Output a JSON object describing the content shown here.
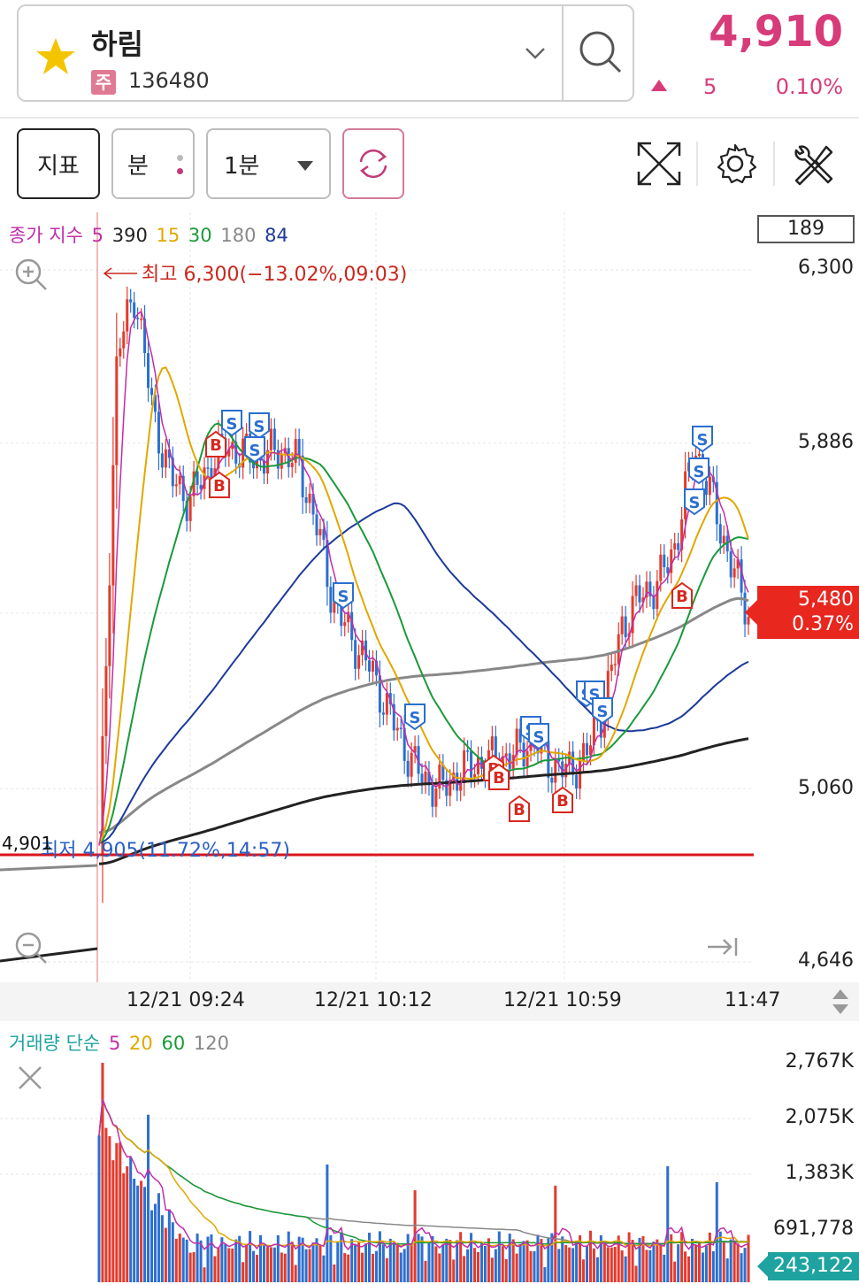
{
  "header": {
    "stock_name": "하림",
    "market_badge": "주",
    "stock_code": "136480",
    "price": "4,910",
    "change_value": "5",
    "change_percent": "0.10%",
    "up_color": "#d83b7a"
  },
  "toolbar": {
    "indicator_label": "지표",
    "unit_label": "분",
    "period_label": "1분"
  },
  "price_chart": {
    "legend": {
      "title": "종가 지수",
      "periods": [
        "5",
        "390",
        "15",
        "30",
        "180",
        "84"
      ],
      "colors": [
        "#c22ea8",
        "#222222",
        "#e0a800",
        "#1a9a3a",
        "#888888",
        "#1c3a9a"
      ]
    },
    "visible_count": "189",
    "y_axis_labels": [
      "6,300",
      "5,886",
      "5,480",
      "5,060",
      "4,646"
    ],
    "current_price_tag": "5,480",
    "current_change_tag": "0.37%",
    "high_annotation": "최고 6,300(−13.02%,09:03)",
    "low_annotation": "최저 4,905(11.72%,14:57)",
    "ref_line_label": "4,901",
    "x_axis_labels": [
      "12/21 09:24",
      "12/21 10:12",
      "12/21 10:59",
      "11:47"
    ]
  },
  "volume_chart": {
    "legend": {
      "title": "거래량 단순",
      "periods": [
        "5",
        "20",
        "60",
        "120"
      ],
      "colors": [
        "#c22ea8",
        "#e0a800",
        "#1a9a3a",
        "#888888"
      ]
    },
    "y_axis_labels": [
      "2,767K",
      "2,075K",
      "1,383K",
      "691,778"
    ],
    "current_volume_tag": "243,122"
  },
  "chart_data": {
    "type": "candlestick",
    "title": "",
    "y_range": [
      4646,
      6300
    ],
    "y_ticks": [
      6300,
      5886,
      5480,
      5060,
      4646
    ],
    "x_ticks": [
      "12/21 09:24",
      "12/21 10:12",
      "12/21 10:59",
      "11:47"
    ],
    "high": 6300,
    "low": 4905,
    "last": 5480,
    "series": [
      {
        "name": "5",
        "color": "#c22ea8"
      },
      {
        "name": "15",
        "color": "#e0a800"
      },
      {
        "name": "30",
        "color": "#1a9a3a"
      },
      {
        "name": "84",
        "color": "#1c3a9a"
      },
      {
        "name": "180",
        "color": "#888888"
      },
      {
        "name": "390",
        "color": "#222222"
      }
    ],
    "close_path": [
      4901,
      6100,
      6250,
      5950,
      5800,
      5750,
      5820,
      5880,
      5860,
      5850,
      5870,
      5840,
      5700,
      5500,
      5420,
      5350,
      5250,
      5150,
      5080,
      5060,
      5100,
      5120,
      5130,
      5140,
      5180,
      5120,
      5100,
      5140,
      5260,
      5450,
      5520,
      5550,
      5650,
      5880,
      5750,
      5600,
      5480
    ],
    "volume_ticks": [
      2767000,
      2075000,
      1383000,
      691778
    ],
    "last_volume": 243122
  }
}
